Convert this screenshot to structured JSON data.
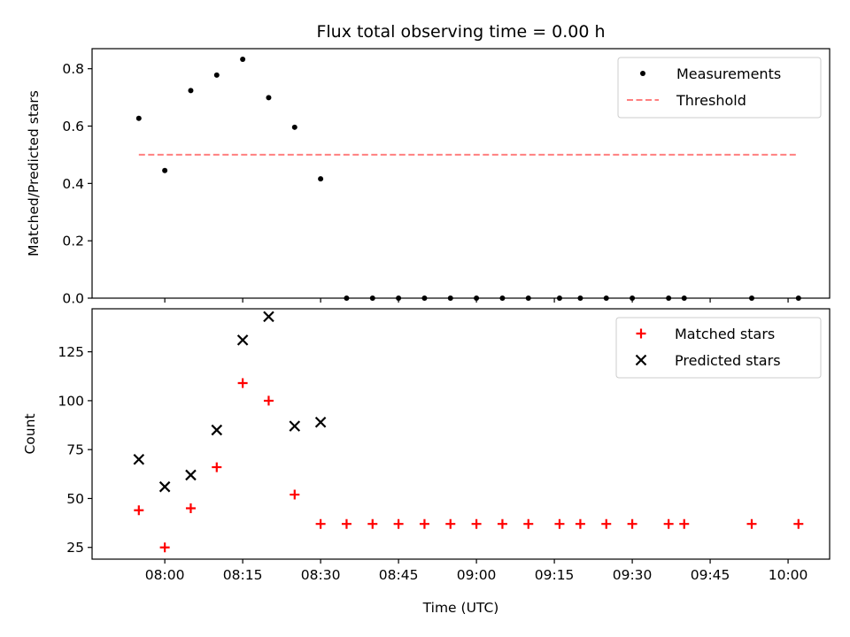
{
  "chart_data": [
    {
      "type": "scatter",
      "title": "Flux total observing time = 0.00 h",
      "ylabel": "Matched/Predicted stars",
      "xlabel": "",
      "xlim": [
        "07:46",
        "10:08"
      ],
      "ylim": [
        0,
        0.87
      ],
      "yticks": [
        0.0,
        0.2,
        0.4,
        0.6,
        0.8
      ],
      "ytick_labels": [
        "0.0",
        "0.2",
        "0.4",
        "0.6",
        "0.8"
      ],
      "legend_position": "upper-right",
      "series": [
        {
          "name": "Measurements",
          "marker": "dot",
          "color": "#000000",
          "points": [
            {
              "x": "07:55",
              "y": 0.627
            },
            {
              "x": "08:00",
              "y": 0.445
            },
            {
              "x": "08:05",
              "y": 0.724
            },
            {
              "x": "08:10",
              "y": 0.778
            },
            {
              "x": "08:15",
              "y": 0.833
            },
            {
              "x": "08:20",
              "y": 0.699
            },
            {
              "x": "08:25",
              "y": 0.596
            },
            {
              "x": "08:30",
              "y": 0.416
            },
            {
              "x": "08:35",
              "y": 0.0
            },
            {
              "x": "08:40",
              "y": 0.0
            },
            {
              "x": "08:45",
              "y": 0.0
            },
            {
              "x": "08:50",
              "y": 0.0
            },
            {
              "x": "08:55",
              "y": 0.0
            },
            {
              "x": "09:00",
              "y": 0.0
            },
            {
              "x": "09:05",
              "y": 0.0
            },
            {
              "x": "09:10",
              "y": 0.0
            },
            {
              "x": "09:16",
              "y": 0.0
            },
            {
              "x": "09:20",
              "y": 0.0
            },
            {
              "x": "09:25",
              "y": 0.0
            },
            {
              "x": "09:30",
              "y": 0.0
            },
            {
              "x": "09:37",
              "y": 0.0
            },
            {
              "x": "09:40",
              "y": 0.0
            },
            {
              "x": "09:53",
              "y": 0.0
            },
            {
              "x": "10:02",
              "y": 0.0
            }
          ]
        },
        {
          "name": "Threshold",
          "marker": "dashed-line",
          "color": "#ff7f7f",
          "points": [
            {
              "x": "07:55",
              "y": 0.5
            },
            {
              "x": "10:02",
              "y": 0.5
            }
          ]
        }
      ]
    },
    {
      "type": "scatter",
      "title": "",
      "ylabel": "Count",
      "xlabel": "Time (UTC)",
      "xlim": [
        "07:46",
        "10:08"
      ],
      "ylim": [
        19,
        147
      ],
      "yticks": [
        25,
        50,
        75,
        100,
        125
      ],
      "ytick_labels": [
        "25",
        "50",
        "75",
        "100",
        "125"
      ],
      "xticks": [
        "08:00",
        "08:15",
        "08:30",
        "08:45",
        "09:00",
        "09:15",
        "09:30",
        "09:45",
        "10:00"
      ],
      "legend_position": "upper-right",
      "series": [
        {
          "name": "Matched stars",
          "marker": "plus",
          "color": "#ff0000",
          "points": [
            {
              "x": "07:55",
              "y": 44
            },
            {
              "x": "08:00",
              "y": 25
            },
            {
              "x": "08:05",
              "y": 45
            },
            {
              "x": "08:10",
              "y": 66
            },
            {
              "x": "08:15",
              "y": 109
            },
            {
              "x": "08:20",
              "y": 100
            },
            {
              "x": "08:25",
              "y": 52
            },
            {
              "x": "08:30",
              "y": 37
            },
            {
              "x": "08:35",
              "y": 37
            },
            {
              "x": "08:40",
              "y": 37
            },
            {
              "x": "08:45",
              "y": 37
            },
            {
              "x": "08:50",
              "y": 37
            },
            {
              "x": "08:55",
              "y": 37
            },
            {
              "x": "09:00",
              "y": 37
            },
            {
              "x": "09:05",
              "y": 37
            },
            {
              "x": "09:10",
              "y": 37
            },
            {
              "x": "09:16",
              "y": 37
            },
            {
              "x": "09:20",
              "y": 37
            },
            {
              "x": "09:25",
              "y": 37
            },
            {
              "x": "09:30",
              "y": 37
            },
            {
              "x": "09:37",
              "y": 37
            },
            {
              "x": "09:40",
              "y": 37
            },
            {
              "x": "09:53",
              "y": 37
            },
            {
              "x": "10:02",
              "y": 37
            }
          ]
        },
        {
          "name": "Predicted stars",
          "marker": "x",
          "color": "#000000",
          "points": [
            {
              "x": "07:55",
              "y": 70
            },
            {
              "x": "08:00",
              "y": 56
            },
            {
              "x": "08:05",
              "y": 62
            },
            {
              "x": "08:10",
              "y": 85
            },
            {
              "x": "08:15",
              "y": 131
            },
            {
              "x": "08:20",
              "y": 143
            },
            {
              "x": "08:25",
              "y": 87
            },
            {
              "x": "08:30",
              "y": 89
            }
          ]
        }
      ]
    }
  ]
}
